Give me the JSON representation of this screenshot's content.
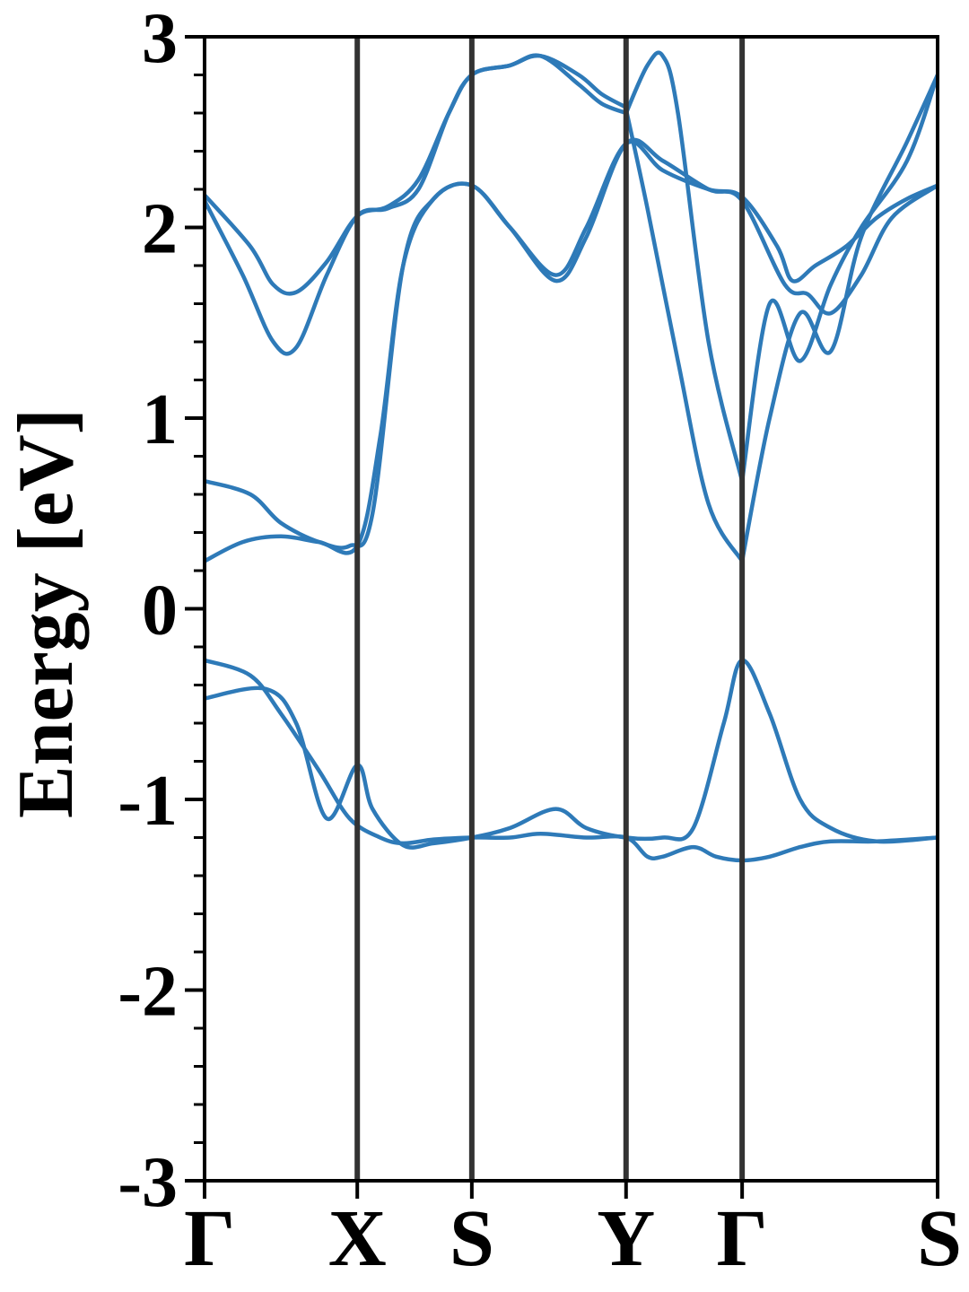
{
  "chart_data": {
    "type": "line",
    "title": "",
    "xlabel": "",
    "ylabel": "Energy [eV]",
    "ylim": [
      -3,
      3
    ],
    "xlim": [
      0,
      4.8
    ],
    "grid": false,
    "legend": "none",
    "yticks": [
      {
        "value": 3,
        "label": "3"
      },
      {
        "value": 2,
        "label": "2"
      },
      {
        "value": 1,
        "label": "1"
      },
      {
        "value": 0,
        "label": "0"
      },
      {
        "value": -1,
        "label": "-1"
      },
      {
        "value": -2,
        "label": "-2"
      },
      {
        "value": -3,
        "label": "-3"
      }
    ],
    "kpoints": [
      {
        "label": "Γ",
        "x": 0
      },
      {
        "label": "X",
        "x": 1.0
      },
      {
        "label": "S",
        "x": 1.75
      },
      {
        "label": "Y",
        "x": 2.76
      },
      {
        "label": "Γ",
        "x": 3.52
      },
      {
        "label": "S",
        "x": 4.8
      }
    ],
    "line_color": "#2e7ab8",
    "divider_color": "#333333",
    "series": [
      {
        "x": [
          0,
          0.3,
          0.45,
          0.6,
          0.8,
          1.0,
          1.2,
          1.4,
          1.6,
          1.75,
          2.0,
          2.2,
          2.45,
          2.6,
          2.76
        ],
        "values": [
          2.17,
          1.9,
          1.7,
          1.66,
          1.82,
          2.06,
          2.11,
          2.25,
          2.6,
          2.8,
          2.85,
          2.9,
          2.8,
          2.7,
          2.63
        ]
      },
      {
        "x": [
          0,
          0.25,
          0.45,
          0.6,
          0.8,
          1.0,
          1.2,
          1.4,
          1.6,
          1.75,
          2.0,
          2.2,
          2.45,
          2.6,
          2.76
        ],
        "values": [
          2.14,
          1.75,
          1.4,
          1.37,
          1.75,
          2.06,
          2.1,
          2.2,
          2.6,
          2.8,
          2.85,
          2.9,
          2.75,
          2.65,
          2.6
        ]
      },
      {
        "x": [
          2.76,
          2.9,
          3.0,
          3.1,
          3.3,
          3.52
        ],
        "values": [
          2.6,
          2.85,
          2.9,
          2.6,
          1.4,
          0.67
        ]
      },
      {
        "x": [
          2.76,
          2.9,
          3.1,
          3.3,
          3.52
        ],
        "values": [
          2.62,
          2.1,
          1.3,
          0.55,
          0.25
        ]
      },
      {
        "x": [
          3.52,
          3.7,
          3.9,
          4.1,
          4.3,
          4.6,
          4.8
        ],
        "values": [
          0.67,
          1.6,
          1.3,
          1.7,
          2.0,
          2.35,
          2.8
        ]
      },
      {
        "x": [
          3.52,
          3.7,
          3.9,
          4.1,
          4.3,
          4.6,
          4.8
        ],
        "values": [
          0.25,
          1.0,
          1.55,
          1.35,
          1.95,
          2.45,
          2.8
        ]
      },
      {
        "x": [
          0,
          0.3,
          0.5,
          0.75,
          0.95,
          1.1,
          1.3,
          1.5,
          1.75,
          2.0,
          2.3,
          2.5,
          2.76,
          3.0,
          3.3,
          3.52,
          3.75,
          3.85,
          4.0,
          4.2,
          4.4,
          4.6,
          4.8
        ],
        "values": [
          0.67,
          0.6,
          0.45,
          0.35,
          0.33,
          0.5,
          1.8,
          2.15,
          2.22,
          2.0,
          1.75,
          2.0,
          2.44,
          2.3,
          2.2,
          2.16,
          1.9,
          1.72,
          1.8,
          1.9,
          2.05,
          2.15,
          2.22
        ]
      },
      {
        "x": [
          0,
          0.25,
          0.5,
          0.75,
          1.0,
          1.15,
          1.3,
          1.5,
          1.75,
          2.0,
          2.3,
          2.5,
          2.76,
          3.0,
          3.3,
          3.52,
          3.8,
          3.95,
          4.1,
          4.3,
          4.5,
          4.8
        ],
        "values": [
          0.25,
          0.35,
          0.38,
          0.35,
          0.33,
          0.9,
          1.8,
          2.15,
          2.22,
          2.0,
          1.72,
          1.95,
          2.44,
          2.35,
          2.2,
          2.14,
          1.7,
          1.65,
          1.55,
          1.75,
          2.05,
          2.22
        ]
      },
      {
        "x": [
          0,
          0.3,
          0.5,
          0.75,
          0.95,
          1.15,
          1.3,
          1.5,
          1.75,
          2.0,
          2.2,
          2.5,
          2.76,
          2.9,
          3.0,
          3.2,
          3.35,
          3.52,
          3.7,
          3.9,
          4.1,
          4.4,
          4.8
        ],
        "values": [
          -0.27,
          -0.35,
          -0.55,
          -0.85,
          -1.1,
          -1.2,
          -1.23,
          -1.21,
          -1.2,
          -1.2,
          -1.18,
          -1.2,
          -1.2,
          -1.3,
          -1.3,
          -1.25,
          -1.3,
          -1.32,
          -1.3,
          -1.25,
          -1.22,
          -1.22,
          -1.2
        ]
      },
      {
        "x": [
          0,
          0.4,
          0.6,
          0.8,
          1.0,
          1.1,
          1.3,
          1.5,
          1.75,
          2.0,
          2.3,
          2.5,
          2.76,
          3.0,
          3.2,
          3.4,
          3.52,
          3.7,
          3.9,
          4.1,
          4.4,
          4.8
        ],
        "values": [
          -0.47,
          -0.42,
          -0.6,
          -1.1,
          -0.82,
          -1.05,
          -1.24,
          -1.23,
          -1.2,
          -1.15,
          -1.05,
          -1.15,
          -1.2,
          -1.2,
          -1.15,
          -0.6,
          -0.27,
          -0.55,
          -1.0,
          -1.15,
          -1.22,
          -1.2
        ]
      }
    ]
  }
}
